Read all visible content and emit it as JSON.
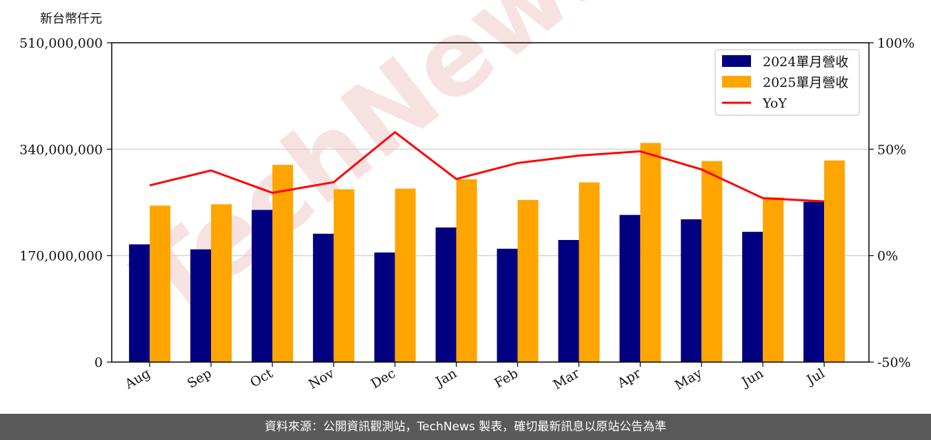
{
  "chart_data": {
    "type": "bar",
    "ylabel": "新台幣仟元",
    "categories": [
      "Aug",
      "Sep",
      "Oct",
      "Nov",
      "Dec",
      "Jan",
      "Feb",
      "Mar",
      "Apr",
      "May",
      "Jun",
      "Jul"
    ],
    "series": [
      {
        "name": "2024單月營收",
        "color": "#000080",
        "values": [
          188000000,
          180000000,
          243000000,
          205000000,
          175000000,
          215000000,
          181000000,
          195000000,
          235000000,
          228000000,
          208000000,
          256000000
        ]
      },
      {
        "name": "2025單月營收",
        "color": "#FFA500",
        "values": [
          250000000,
          252000000,
          315000000,
          276000000,
          277000000,
          292000000,
          259000000,
          287000000,
          350000000,
          321000000,
          263000000,
          322000000
        ]
      }
    ],
    "line_series": {
      "name": "YoY",
      "color": "#FF0000",
      "axis": "right",
      "values": [
        33,
        40,
        29.5,
        34.5,
        58,
        36,
        43.5,
        47,
        49,
        40.5,
        27,
        25.5
      ]
    },
    "ylim": [
      0,
      510000000
    ],
    "yticks": [
      "0",
      "170,000,000",
      "340,000,000",
      "510,000,000"
    ],
    "ytick_values": [
      0,
      170000000,
      340000000,
      510000000
    ],
    "y2lim": [
      -50,
      100
    ],
    "y2ticks": [
      "-50%",
      "0%",
      "50%",
      "100%"
    ],
    "y2tick_values": [
      -50,
      0,
      50,
      100
    ],
    "grid": "horizontal",
    "legend": "top-right"
  },
  "watermark": "TechNews",
  "footer": "資料來源：公開資訊觀測站，TechNews 製表，確切最新訊息以原站公告為準"
}
